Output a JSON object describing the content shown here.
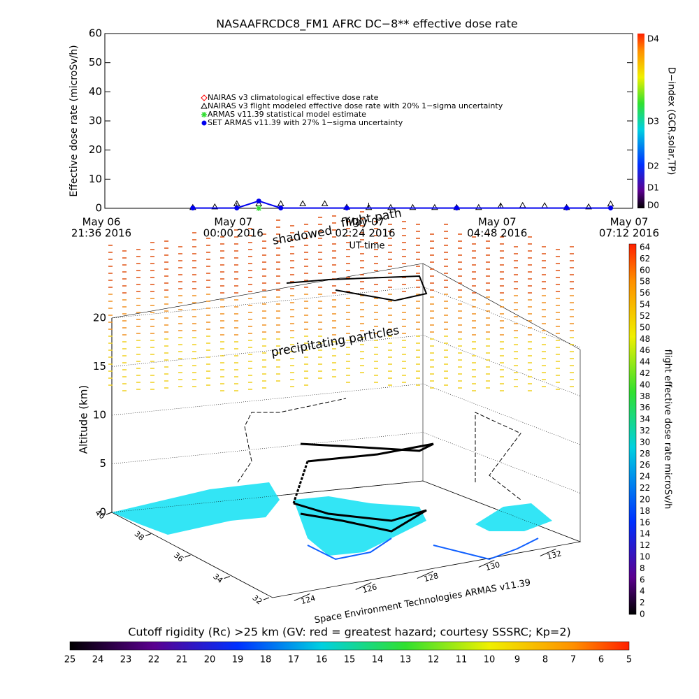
{
  "chart_data": [
    {
      "type": "line",
      "title": "NASAAFRCDC8_FM1 AFRC DC−8** effective dose rate",
      "y_label": "Effective dose rate (microSv/h)",
      "x_label": "UT time",
      "ylim": [
        0,
        60
      ],
      "yticks": [
        0,
        10,
        20,
        30,
        40,
        50,
        60
      ],
      "xlim": [
        "2016-05-06T21:36",
        "2016-05-07T07:12"
      ],
      "xticks": [
        {
          "value": "2016-05-06T21:36",
          "label": [
            "May 06",
            "21:36 2016"
          ]
        },
        {
          "value": "2016-05-07T00:00",
          "label": [
            "May 07",
            "00:00 2016"
          ]
        },
        {
          "value": "2016-05-07T02:24",
          "label": [
            "May 07",
            "02:24 2016"
          ]
        },
        {
          "value": "2016-05-07T04:48",
          "label": [
            "May 07",
            "04:48 2016"
          ]
        },
        {
          "value": "2016-05-07T07:12",
          "label": [
            "May 07",
            "07:12 2016"
          ]
        }
      ],
      "series": [
        {
          "name": "NAIRAS v3 climatological effective dose rate",
          "color": "#ff0000",
          "marker": "diamond",
          "x": [],
          "values": []
        },
        {
          "name": "NAIRAS v3 flight modeled effective dose rate with 20% 1−sigma uncertainty",
          "color": "#000000",
          "marker": "triangle",
          "x": [
            "2016-05-06T23:12",
            "2016-05-06T23:36",
            "2016-05-07T00:00",
            "2016-05-07T00:24",
            "2016-05-07T00:48",
            "2016-05-07T01:12",
            "2016-05-07T01:36",
            "2016-05-07T02:00",
            "2016-05-07T02:24",
            "2016-05-07T02:48",
            "2016-05-07T03:12",
            "2016-05-07T03:36",
            "2016-05-07T04:00",
            "2016-05-07T04:24",
            "2016-05-07T04:48",
            "2016-05-07T05:12",
            "2016-05-07T05:36",
            "2016-05-07T06:00",
            "2016-05-07T06:24",
            "2016-05-07T06:48"
          ],
          "values": [
            0.3,
            0.5,
            1.6,
            1.6,
            1.6,
            1.6,
            1.6,
            0.4,
            0.3,
            0.3,
            0.3,
            0.3,
            0.3,
            0.3,
            0.8,
            1.0,
            0.9,
            0.3,
            0.5,
            1.5
          ]
        },
        {
          "name": "ARMAS v11.39 statistical model estimate",
          "color": "#33dd33",
          "marker": "star",
          "x": [
            "2016-05-07T00:24"
          ],
          "values": [
            0
          ]
        },
        {
          "name": "SET ARMAS v11.39 with 27% 1−sigma uncertainty",
          "color": "#0000ee",
          "marker": "circle",
          "x": [
            "2016-05-06T23:12",
            "2016-05-07T00:00",
            "2016-05-07T00:24",
            "2016-05-07T00:48",
            "2016-05-07T02:00",
            "2016-05-07T04:00",
            "2016-05-07T06:00",
            "2016-05-07T06:48"
          ],
          "values": [
            0.1,
            0.1,
            2.5,
            0.1,
            0.1,
            0.1,
            0.1,
            0.1
          ]
        }
      ],
      "colorbar": {
        "label": "D−index (GCR,solar,TP)",
        "ticks": [
          "D0",
          "D1",
          "D2",
          "D3",
          "D4"
        ]
      }
    },
    {
      "type": "scatter3d",
      "annotations": [
        "shadowed",
        "flight path",
        "precipitating particles"
      ],
      "z_label": "Altitude (km)",
      "zticks": [
        0,
        5,
        10,
        15,
        20
      ],
      "yticks": [
        40,
        38,
        36,
        34,
        32
      ],
      "xticks": [
        124,
        126,
        128,
        130,
        132
      ],
      "credit": "Space Environment Technologies ARMAS v11.39",
      "colorbar": {
        "label": "flight effective dose rate microSv/h",
        "ticks": [
          0,
          2,
          4,
          6,
          8,
          10,
          12,
          14,
          16,
          18,
          20,
          22,
          24,
          26,
          28,
          30,
          32,
          34,
          36,
          38,
          40,
          42,
          44,
          46,
          48,
          50,
          52,
          54,
          56,
          58,
          60,
          62,
          64
        ]
      },
      "rigidity_bar": {
        "label": "Cutoff rigidity (Rc) >25 km (GV: red = greatest hazard; courtesy SSSRC; Kp=2)",
        "ticks": [
          25,
          24,
          23,
          22,
          21,
          20,
          19,
          18,
          17,
          16,
          15,
          14,
          13,
          12,
          11,
          10,
          9,
          8,
          7,
          6,
          5
        ]
      }
    }
  ]
}
